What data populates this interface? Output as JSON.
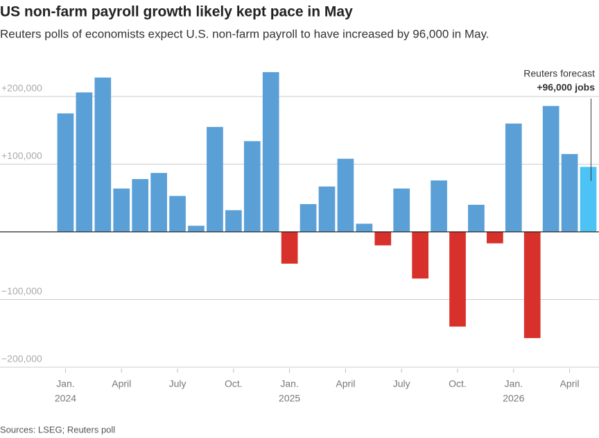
{
  "chart_data": {
    "type": "bar",
    "title": "US non-farm payroll growth likely kept pace in May",
    "subtitle": "Reuters polls of economists expect U.S. non-farm payroll to have increased by 96,000 in May.",
    "source": "Sources: LSEG; Reuters poll",
    "categories": [
      "Jan.",
      null,
      null,
      "April",
      null,
      null,
      "July",
      null,
      null,
      "Oct.",
      null,
      null,
      "Jan.",
      null,
      null,
      "April",
      null,
      null,
      "July",
      null,
      null,
      "Oct.",
      null,
      null,
      "Jan.",
      null,
      null,
      "April",
      null
    ],
    "years": [
      "2024",
      "2025",
      "2026"
    ],
    "values": [
      175000,
      206000,
      228000,
      64000,
      78000,
      87000,
      53000,
      9000,
      155000,
      32000,
      134000,
      236000,
      -47000,
      41000,
      67000,
      108000,
      12000,
      -20000,
      64000,
      -69000,
      76000,
      -140000,
      40000,
      -17000,
      160000,
      -157000,
      186000,
      115000,
      96000
    ],
    "positive_color": "#5b9fd7",
    "negative_color": "#d8302a",
    "forecast_color": "#4cc2f5",
    "forecast_annotation": {
      "label": "Reuters forecast",
      "value_label": "+96,000 jobs"
    },
    "ylim": [
      -200000,
      240000
    ],
    "yticks": [
      {
        "value": -200000,
        "label": "−200,000"
      },
      {
        "value": -100000,
        "label": "−100,000"
      },
      {
        "value": 100000,
        "label": "+100,000"
      },
      {
        "value": 200000,
        "label": "+200,000"
      }
    ],
    "grid": true
  }
}
